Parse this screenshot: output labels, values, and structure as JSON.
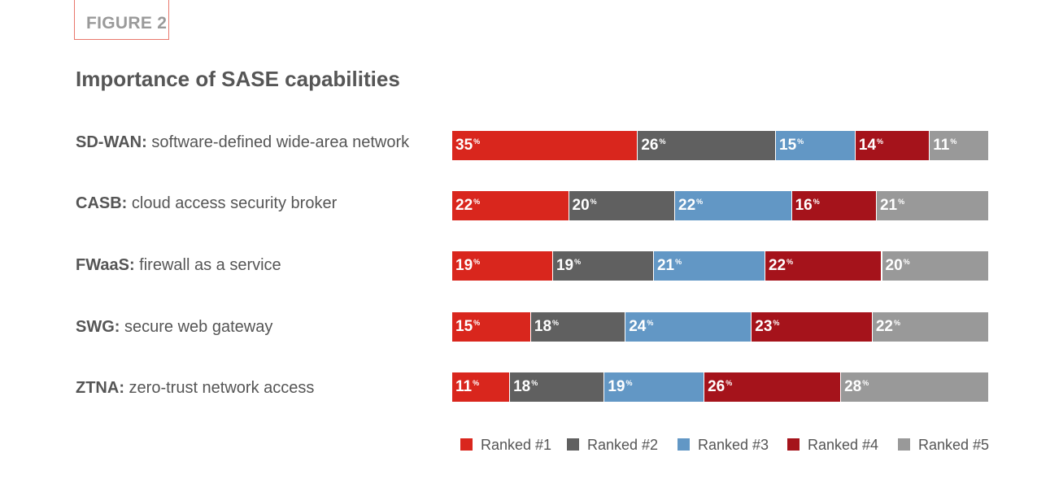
{
  "figure_label": "FIGURE 2",
  "colors": {
    "rank1": "#d9261d",
    "rank2": "#606060",
    "rank3": "#6297c5",
    "rank4": "#a5131b",
    "rank5": "#999999",
    "accent_border": "#e8776c"
  },
  "chart_data": {
    "type": "bar",
    "orientation": "horizontal",
    "stacked": true,
    "title": "Importance of SASE capabilities",
    "categories": [
      {
        "abbr": "SD-WAN:",
        "desc": "software-defined wide-area network"
      },
      {
        "abbr": "CASB:",
        "desc": "cloud access security broker"
      },
      {
        "abbr": "FWaaS:",
        "desc": "firewall as a service"
      },
      {
        "abbr": "SWG:",
        "desc": "secure web gateway"
      },
      {
        "abbr": "ZTNA:",
        "desc": "zero-trust network access"
      }
    ],
    "series": [
      {
        "name": "Ranked #1",
        "color": "#d9261d",
        "values": [
          35,
          22,
          19,
          15,
          11
        ]
      },
      {
        "name": "Ranked #2",
        "color": "#606060",
        "values": [
          26,
          20,
          19,
          18,
          18
        ]
      },
      {
        "name": "Ranked #3",
        "color": "#6297c5",
        "values": [
          15,
          22,
          21,
          24,
          19
        ]
      },
      {
        "name": "Ranked #4",
        "color": "#a5131b",
        "values": [
          14,
          16,
          22,
          23,
          26
        ]
      },
      {
        "name": "Ranked #5",
        "color": "#999999",
        "values": [
          11,
          21,
          20,
          22,
          28
        ]
      }
    ],
    "value_suffix": "%",
    "legend_position": "bottom-right"
  }
}
